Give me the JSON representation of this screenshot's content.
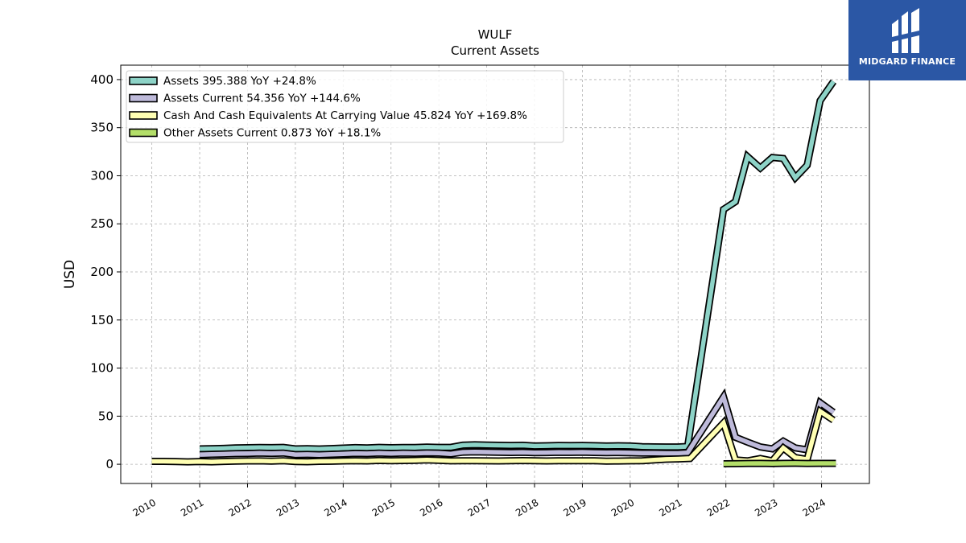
{
  "chart_data": {
    "type": "line",
    "title": "WULF",
    "subtitle": "Current  Assets",
    "xlabel": "",
    "ylabel": "USD",
    "xlim": [
      2009.35,
      2025.0
    ],
    "ylim": [
      -20,
      415
    ],
    "x_ticks": [
      "2010",
      "2011",
      "2012",
      "2013",
      "2014",
      "2015",
      "2016",
      "2017",
      "2018",
      "2019",
      "2020",
      "2021",
      "2022",
      "2023",
      "2024"
    ],
    "y_ticks": [
      "0",
      "50",
      "100",
      "150",
      "200",
      "250",
      "300",
      "350",
      "400"
    ],
    "grid": true,
    "legend_position": "top-left",
    "series": [
      {
        "name": "Assets  395.388 YoY +24.8%",
        "color": "#8dd3c7",
        "points": [
          [
            2011.0,
            16
          ],
          [
            2011.25,
            16.2
          ],
          [
            2011.5,
            16.5
          ],
          [
            2011.75,
            17
          ],
          [
            2012.0,
            17.2
          ],
          [
            2012.25,
            17.5
          ],
          [
            2012.5,
            17.3
          ],
          [
            2012.75,
            17.6
          ],
          [
            2013.0,
            16
          ],
          [
            2013.25,
            16.2
          ],
          [
            2013.5,
            15.9
          ],
          [
            2013.75,
            16.3
          ],
          [
            2014.0,
            16.8
          ],
          [
            2014.25,
            17.3
          ],
          [
            2014.5,
            17
          ],
          [
            2014.75,
            17.6
          ],
          [
            2015.0,
            17.2
          ],
          [
            2015.25,
            17.5
          ],
          [
            2015.5,
            17.4
          ],
          [
            2015.75,
            17.8
          ],
          [
            2016.0,
            17.6
          ],
          [
            2016.25,
            17.6
          ],
          [
            2016.5,
            19.8
          ],
          [
            2016.75,
            20.2
          ],
          [
            2017.0,
            20
          ],
          [
            2017.25,
            19.7
          ],
          [
            2017.5,
            19.5
          ],
          [
            2017.75,
            19.7
          ],
          [
            2018.0,
            19
          ],
          [
            2018.25,
            19.2
          ],
          [
            2018.5,
            19.5
          ],
          [
            2018.75,
            19.4
          ],
          [
            2019.0,
            19.6
          ],
          [
            2019.25,
            19.3
          ],
          [
            2019.5,
            19
          ],
          [
            2019.75,
            19.2
          ],
          [
            2020.0,
            19
          ],
          [
            2020.25,
            18.3
          ],
          [
            2020.5,
            18.1
          ],
          [
            2020.75,
            18
          ],
          [
            2021.0,
            18
          ],
          [
            2021.2,
            18.5
          ],
          [
            2021.95,
            265
          ],
          [
            2022.2,
            273
          ],
          [
            2022.45,
            320
          ],
          [
            2022.72,
            308
          ],
          [
            2022.97,
            319
          ],
          [
            2023.2,
            318
          ],
          [
            2023.45,
            298
          ],
          [
            2023.7,
            311
          ],
          [
            2023.97,
            378
          ],
          [
            2024.25,
            398
          ]
        ]
      },
      {
        "name": "Assets Current  54.356 YoY +144.6%",
        "color": "#bebada",
        "points": [
          [
            2011.0,
            10
          ],
          [
            2011.25,
            10.3
          ],
          [
            2011.5,
            10.6
          ],
          [
            2011.75,
            11
          ],
          [
            2012.0,
            11.2
          ],
          [
            2012.25,
            11.5
          ],
          [
            2012.5,
            11.3
          ],
          [
            2012.75,
            11.6
          ],
          [
            2013.0,
            10
          ],
          [
            2013.25,
            10.2
          ],
          [
            2013.5,
            9.9
          ],
          [
            2013.75,
            10.3
          ],
          [
            2014.0,
            10.8
          ],
          [
            2014.25,
            11.3
          ],
          [
            2014.5,
            11
          ],
          [
            2014.75,
            11.6
          ],
          [
            2015.0,
            11.2
          ],
          [
            2015.25,
            11.5
          ],
          [
            2015.5,
            11.4
          ],
          [
            2015.75,
            11.8
          ],
          [
            2016.0,
            11.6
          ],
          [
            2016.25,
            10.8
          ],
          [
            2016.5,
            12.5
          ],
          [
            2016.75,
            12.8
          ],
          [
            2017.0,
            12.6
          ],
          [
            2017.25,
            12.4
          ],
          [
            2017.5,
            12.2
          ],
          [
            2017.75,
            12.4
          ],
          [
            2018.0,
            12
          ],
          [
            2018.25,
            12.1
          ],
          [
            2018.5,
            12.4
          ],
          [
            2018.75,
            12.3
          ],
          [
            2019.0,
            12.5
          ],
          [
            2019.25,
            12.2
          ],
          [
            2019.5,
            12
          ],
          [
            2019.75,
            12.1
          ],
          [
            2020.0,
            11.9
          ],
          [
            2020.25,
            11.6
          ],
          [
            2020.5,
            11.5
          ],
          [
            2020.75,
            11.4
          ],
          [
            2021.0,
            11.4
          ],
          [
            2021.2,
            12
          ],
          [
            2021.95,
            70
          ],
          [
            2022.2,
            28
          ],
          [
            2022.45,
            23
          ],
          [
            2022.72,
            18
          ],
          [
            2022.97,
            16
          ],
          [
            2023.2,
            24
          ],
          [
            2023.45,
            17
          ],
          [
            2023.7,
            15
          ],
          [
            2023.97,
            64
          ],
          [
            2024.25,
            54
          ]
        ]
      },
      {
        "name": "Cash And Cash Equivalents At Carrying Value  45.824 YoY +169.8%",
        "color": "#ffffb3",
        "points": [
          [
            2010.0,
            3
          ],
          [
            2010.25,
            3
          ],
          [
            2010.5,
            2.8
          ],
          [
            2010.75,
            2.5
          ],
          [
            2011.0,
            2.8
          ],
          [
            2011.25,
            2.5
          ],
          [
            2011.5,
            2.9
          ],
          [
            2011.75,
            3.2
          ],
          [
            2012.0,
            3.4
          ],
          [
            2012.25,
            3.5
          ],
          [
            2012.5,
            3.2
          ],
          [
            2012.75,
            3.6
          ],
          [
            2013.0,
            2.8
          ],
          [
            2013.25,
            2.6
          ],
          [
            2013.5,
            3
          ],
          [
            2013.75,
            3.1
          ],
          [
            2014.0,
            3.4
          ],
          [
            2014.25,
            3.7
          ],
          [
            2014.5,
            3.4
          ],
          [
            2014.75,
            3.9
          ],
          [
            2015.0,
            3.7
          ],
          [
            2015.25,
            3.8
          ],
          [
            2015.5,
            4
          ],
          [
            2015.75,
            4.4
          ],
          [
            2016.0,
            4
          ],
          [
            2016.25,
            3.5
          ],
          [
            2016.5,
            3.6
          ],
          [
            2016.75,
            3.6
          ],
          [
            2017.0,
            3.5
          ],
          [
            2017.25,
            3.4
          ],
          [
            2017.5,
            3.6
          ],
          [
            2017.75,
            3.8
          ],
          [
            2018.0,
            3.6
          ],
          [
            2018.25,
            3.4
          ],
          [
            2018.5,
            3.6
          ],
          [
            2018.75,
            3.6
          ],
          [
            2019.0,
            3.7
          ],
          [
            2019.25,
            3.6
          ],
          [
            2019.5,
            3.2
          ],
          [
            2019.75,
            3.3
          ],
          [
            2020.0,
            3.5
          ],
          [
            2020.25,
            3.6
          ],
          [
            2020.5,
            4.5
          ],
          [
            2020.75,
            5.2
          ],
          [
            2021.0,
            5.5
          ],
          [
            2021.25,
            6
          ],
          [
            2021.95,
            43
          ],
          [
            2022.2,
            4.5
          ],
          [
            2022.45,
            3.5
          ],
          [
            2022.72,
            6
          ],
          [
            2022.97,
            3.5
          ],
          [
            2023.2,
            17
          ],
          [
            2023.45,
            7
          ],
          [
            2023.7,
            5
          ],
          [
            2023.97,
            55
          ],
          [
            2024.25,
            45.8
          ]
        ]
      },
      {
        "name": "Other Assets Current  0.873 YoY +18.1%",
        "color": "#b3de69",
        "points": [
          [
            2021.95,
            0.5
          ],
          [
            2022.2,
            0.6
          ],
          [
            2022.45,
            0.8
          ],
          [
            2022.72,
            0.9
          ],
          [
            2022.97,
            0.7
          ],
          [
            2023.2,
            0.9
          ],
          [
            2023.45,
            1
          ],
          [
            2023.7,
            0.8
          ],
          [
            2023.97,
            0.9
          ],
          [
            2024.3,
            0.9
          ]
        ]
      }
    ]
  },
  "watermark": {
    "brand": "MIDGARD FINANCE",
    "background": "#2b57a5"
  }
}
